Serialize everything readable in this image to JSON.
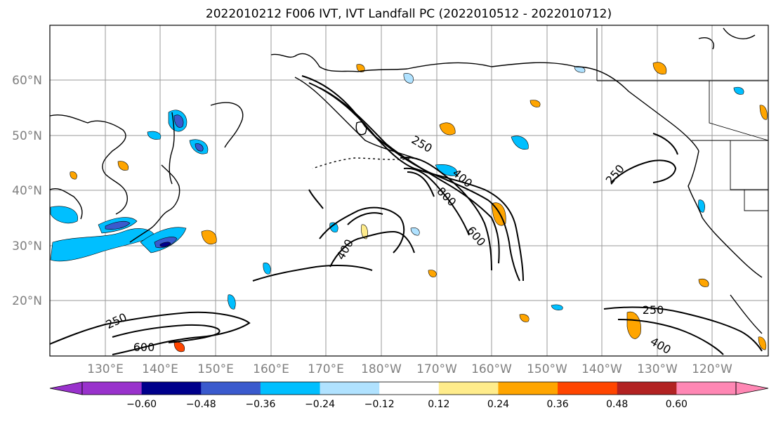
{
  "title": "2022010212 F006 IVT, IVT Landfall PC (2022010512 - 2022010712)",
  "lat_labels": [
    "60°N",
    "50°N",
    "40°N",
    "30°N",
    "20°N"
  ],
  "lon_labels": [
    "130°E",
    "140°E",
    "150°E",
    "160°E",
    "170°E",
    "180°W",
    "170°W",
    "160°W",
    "150°W",
    "140°W",
    "130°W",
    "120°W"
  ],
  "contour_labels": [
    "250",
    "250",
    "250",
    "400",
    "400",
    "400",
    "600",
    "600",
    "800",
    "250"
  ],
  "colorbar": {
    "ticks": [
      "−0.60",
      "−0.48",
      "−0.36",
      "−0.24",
      "−0.12",
      "0.12",
      "0.24",
      "0.36",
      "0.48",
      "0.60"
    ],
    "colors": [
      "#9932cc",
      "#00008b",
      "#3a5acd",
      "#00bfff",
      "#b0e2ff",
      "#ffffff",
      "#ffec8b",
      "#ffa500",
      "#ff4500",
      "#b22222",
      "#ff87b4"
    ]
  }
}
